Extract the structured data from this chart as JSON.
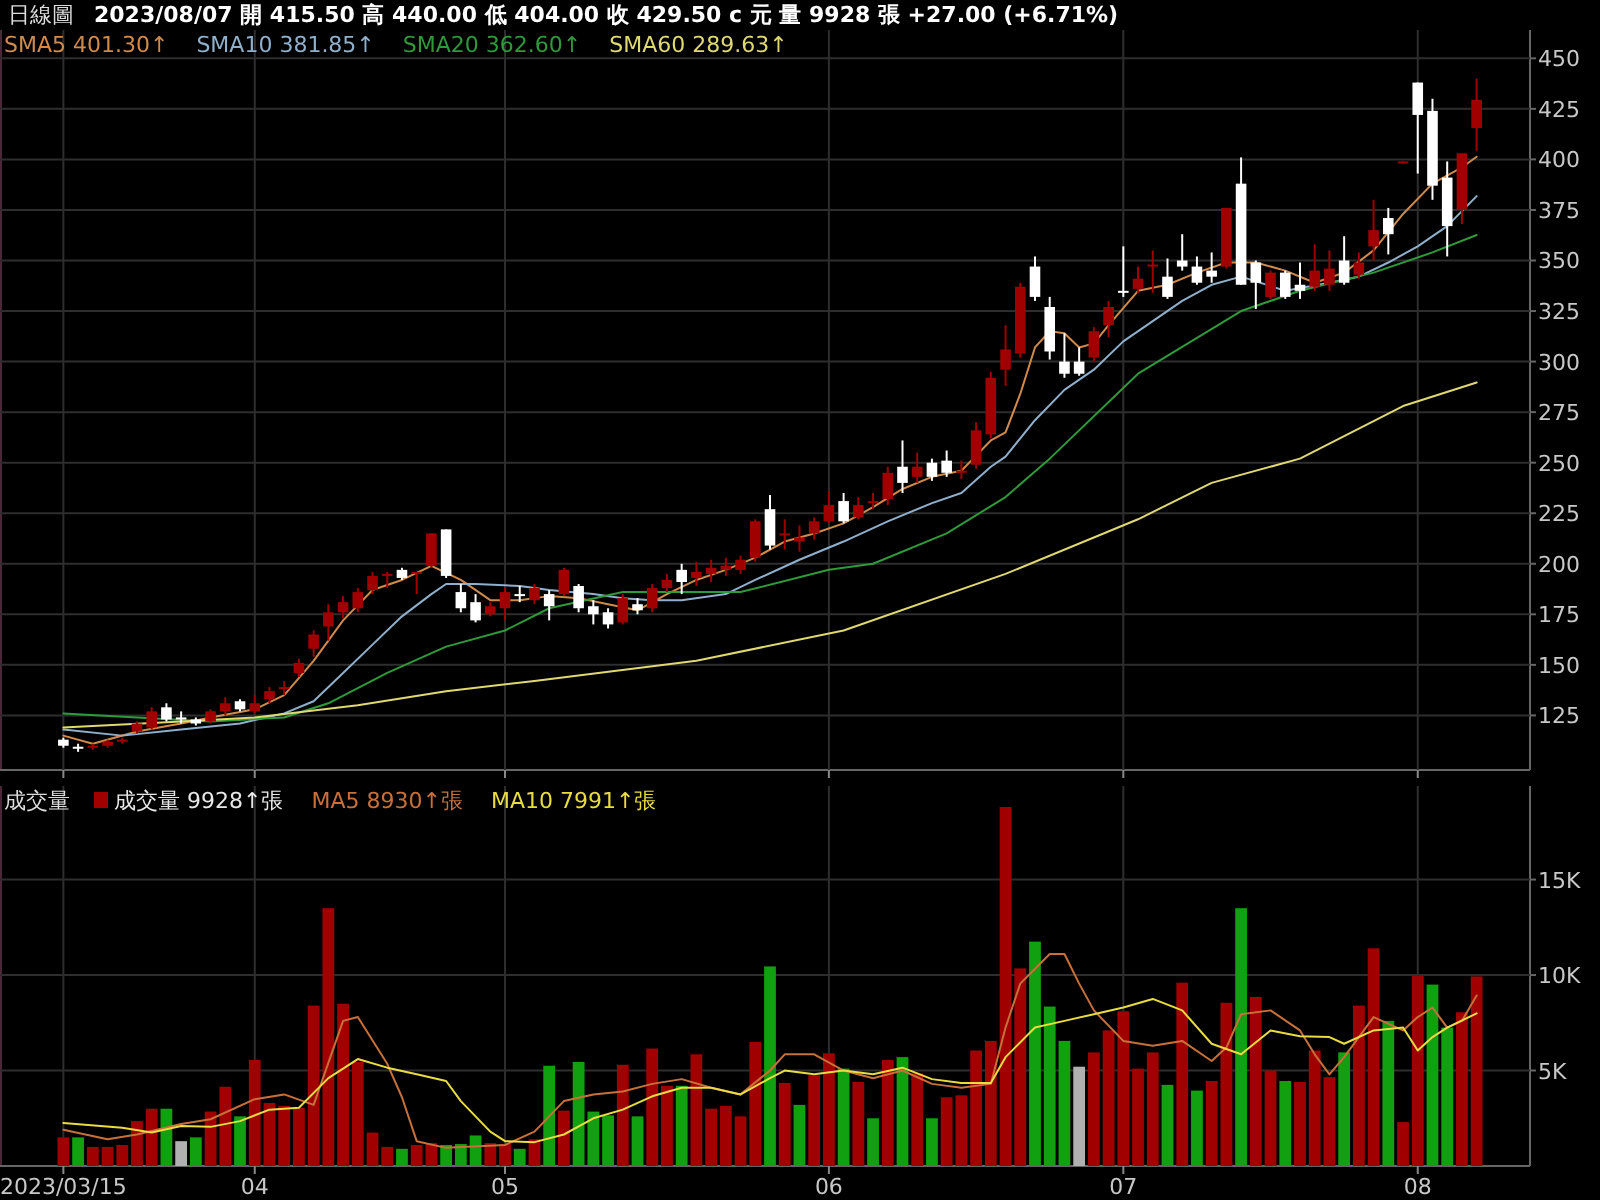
{
  "chart_data": [
    {
      "type": "candlestick",
      "title": "日線圖",
      "subtitle": "2023/08/07 開 415.50 高 440.00 低 404.00 收 429.50 c 元 量 9928 張 +27.00 (+6.71%)",
      "categories": [
        "2023/03/15",
        null,
        null,
        null,
        null,
        null,
        null,
        null,
        null,
        null,
        null,
        null,
        null,
        "04",
        null,
        null,
        null,
        null,
        null,
        null,
        null,
        null,
        null,
        null,
        null,
        null,
        null,
        null,
        null,
        null,
        "05",
        null,
        null,
        null,
        null,
        null,
        null,
        null,
        null,
        null,
        null,
        null,
        null,
        null,
        null,
        null,
        null,
        null,
        null,
        null,
        null,
        null,
        "06",
        null,
        null,
        null,
        null,
        null,
        null,
        null,
        null,
        null,
        null,
        null,
        null,
        null,
        null,
        null,
        null,
        null,
        null,
        null,
        "07",
        null,
        null,
        null,
        null,
        null,
        null,
        null,
        null,
        null,
        null,
        null,
        null,
        null,
        null,
        null,
        null,
        null,
        null,
        null,
        "08",
        null,
        null,
        null,
        null
      ],
      "ohlc": [
        [
          113,
          114,
          109,
          110
        ],
        [
          109.5,
          111,
          107,
          109
        ],
        [
          109,
          111,
          108,
          110
        ],
        [
          110,
          113,
          109,
          112
        ],
        [
          112,
          114,
          111,
          113
        ],
        [
          117,
          122,
          116,
          121
        ],
        [
          119,
          129,
          118,
          127
        ],
        [
          129,
          131,
          122,
          123
        ],
        [
          124,
          127,
          121,
          123
        ],
        [
          123,
          124,
          120,
          121
        ],
        [
          122,
          128,
          121,
          127
        ],
        [
          127,
          134,
          125,
          131
        ],
        [
          132,
          133,
          127,
          128
        ],
        [
          127,
          135,
          126,
          131
        ],
        [
          133,
          139,
          131,
          137
        ],
        [
          138,
          142,
          135,
          139
        ],
        [
          146,
          153,
          144,
          151
        ],
        [
          158,
          167,
          154,
          165
        ],
        [
          169,
          180,
          162,
          176
        ],
        [
          176,
          184,
          173,
          181
        ],
        [
          178,
          188,
          176,
          186
        ],
        [
          187,
          196,
          185,
          194
        ],
        [
          194,
          196,
          188,
          195
        ],
        [
          197,
          198,
          192,
          193
        ],
        [
          195,
          196,
          185,
          196
        ],
        [
          199,
          215,
          198,
          215
        ],
        [
          217,
          217,
          193,
          194
        ],
        [
          186,
          190,
          176,
          178
        ],
        [
          181,
          185,
          171,
          172
        ],
        [
          175,
          181,
          174,
          179
        ],
        [
          178,
          188,
          172,
          186
        ],
        [
          185,
          189,
          181,
          184
        ],
        [
          182,
          190,
          180,
          188
        ],
        [
          185,
          187,
          172,
          179
        ],
        [
          185,
          198,
          184,
          197
        ],
        [
          189,
          190,
          176,
          178
        ],
        [
          179,
          182,
          170,
          175
        ],
        [
          176,
          178,
          168,
          170
        ],
        [
          171,
          185,
          170,
          183
        ],
        [
          180,
          183,
          175,
          177
        ],
        [
          178,
          190,
          176,
          188
        ],
        [
          188,
          195,
          186,
          192
        ],
        [
          197,
          200,
          185,
          191
        ],
        [
          193,
          201,
          189,
          196
        ],
        [
          195,
          202,
          191,
          198
        ],
        [
          197,
          203,
          194,
          199
        ],
        [
          197,
          204,
          195,
          202
        ],
        [
          203,
          222,
          201,
          221
        ],
        [
          227,
          234,
          207,
          209
        ],
        [
          214,
          222,
          207,
          215
        ],
        [
          211,
          219,
          206,
          213
        ],
        [
          215,
          223,
          212,
          221
        ],
        [
          221,
          236,
          220,
          229
        ],
        [
          231,
          235,
          220,
          221
        ],
        [
          223,
          233,
          222,
          229
        ],
        [
          230,
          235,
          227,
          231
        ],
        [
          232,
          248,
          229,
          245
        ],
        [
          248,
          261,
          235,
          240
        ],
        [
          243,
          255,
          240,
          248
        ],
        [
          250,
          252,
          241,
          243
        ],
        [
          251,
          256,
          243,
          245
        ],
        [
          245,
          251,
          242,
          246
        ],
        [
          249,
          270,
          247,
          266
        ],
        [
          264,
          295,
          262,
          292
        ],
        [
          296,
          318,
          288,
          306
        ],
        [
          304,
          339,
          302,
          337
        ],
        [
          347,
          352,
          330,
          332
        ],
        [
          327,
          332,
          301,
          305
        ],
        [
          300,
          314,
          292,
          294
        ],
        [
          300,
          307,
          293,
          294
        ],
        [
          302,
          317,
          300,
          315
        ],
        [
          318,
          330,
          312,
          327
        ],
        [
          335,
          357,
          332,
          334
        ],
        [
          336,
          347,
          334,
          341
        ],
        [
          347,
          355,
          334,
          348
        ],
        [
          342,
          351,
          331,
          332
        ],
        [
          350,
          363,
          345,
          347
        ],
        [
          347,
          352,
          338,
          339
        ],
        [
          345,
          354,
          339,
          342
        ],
        [
          347,
          376,
          346,
          376
        ],
        [
          388,
          401,
          338,
          338
        ],
        [
          349,
          350,
          326,
          339
        ],
        [
          332,
          345,
          331,
          344
        ],
        [
          344,
          345,
          331,
          332
        ],
        [
          338,
          349,
          331,
          335
        ],
        [
          337,
          358,
          335,
          345
        ],
        [
          338,
          355,
          335,
          346
        ],
        [
          350,
          362,
          338,
          339
        ],
        [
          343,
          354,
          341,
          349
        ],
        [
          357,
          380,
          350,
          365
        ],
        [
          371,
          376,
          353,
          363
        ],
        [
          398,
          399,
          398,
          399
        ],
        [
          438,
          438,
          393,
          422
        ],
        [
          424,
          430,
          380,
          387
        ],
        [
          391,
          399,
          352,
          367
        ],
        [
          375,
          403,
          368,
          403
        ],
        [
          415.5,
          440,
          404,
          429.5
        ]
      ],
      "colors": [
        "#ffffff",
        "#ffffff",
        "#a00000",
        "#a00000",
        "#a00000",
        "#a00000",
        "#a00000",
        "#ffffff",
        "#ffffff",
        "#ffffff",
        "#a00000",
        "#a00000",
        "#ffffff",
        "#a00000",
        "#a00000",
        "#a00000",
        "#a00000",
        "#a00000",
        "#a00000",
        "#a00000",
        "#a00000",
        "#a00000",
        "#a00000",
        "#ffffff",
        "#a00000",
        "#a00000",
        "#ffffff",
        "#ffffff",
        "#ffffff",
        "#a00000",
        "#a00000",
        "#ffffff",
        "#a00000",
        "#ffffff",
        "#a00000",
        "#ffffff",
        "#ffffff",
        "#ffffff",
        "#a00000",
        "#ffffff",
        "#a00000",
        "#a00000",
        "#ffffff",
        "#a00000",
        "#a00000",
        "#a00000",
        "#a00000",
        "#a00000",
        "#ffffff",
        "#a00000",
        "#a00000",
        "#a00000",
        "#a00000",
        "#ffffff",
        "#a00000",
        "#a00000",
        "#a00000",
        "#ffffff",
        "#a00000",
        "#ffffff",
        "#ffffff",
        "#a00000",
        "#a00000",
        "#a00000",
        "#a00000",
        "#a00000",
        "#ffffff",
        "#ffffff",
        "#ffffff",
        "#ffffff",
        "#a00000",
        "#a00000",
        "#ffffff",
        "#a00000",
        "#a00000",
        "#ffffff",
        "#ffffff",
        "#ffffff",
        "#ffffff",
        "#a00000",
        "#ffffff",
        "#ffffff",
        "#a00000",
        "#ffffff",
        "#ffffff",
        "#a00000",
        "#a00000",
        "#ffffff",
        "#a00000",
        "#a00000",
        "#ffffff",
        "#a00000",
        "#ffffff",
        "#ffffff",
        "#ffffff",
        "#a00000",
        "#a00000"
      ],
      "series": [
        {
          "name": "SMA5 401.30↑",
          "type": "line",
          "color": "#d08a4a",
          "values": [
            115,
            null,
            111,
            null,
            null,
            117,
            null,
            null,
            121,
            null,
            124,
            null,
            null,
            128,
            null,
            135,
            null,
            152,
            null,
            172,
            null,
            187,
            null,
            192,
            null,
            199,
            null,
            192,
            null,
            182,
            null,
            182,
            null,
            184,
            null,
            183,
            null,
            180,
            null,
            177,
            null,
            185,
            null,
            192,
            null,
            197,
            null,
            203,
            null,
            211,
            null,
            215,
            null,
            220,
            null,
            228,
            null,
            237,
            null,
            243,
            null,
            246,
            null,
            261,
            265,
            284,
            307,
            315,
            314,
            307,
            309,
            318,
            null,
            335,
            null,
            338,
            null,
            344,
            null,
            349,
            null,
            349,
            null,
            345,
            null,
            339,
            null,
            344,
            null,
            355,
            null,
            373,
            null,
            388,
            null,
            396,
            401.3
          ]
        },
        {
          "name": "SMA10 381.85↑",
          "type": "line",
          "color": "#8fb0cc",
          "values": [
            118,
            null,
            null,
            null,
            115,
            null,
            null,
            null,
            118,
            null,
            null,
            null,
            121,
            null,
            null,
            126,
            null,
            132,
            null,
            146,
            null,
            160,
            null,
            174,
            null,
            185,
            190,
            null,
            190,
            null,
            null,
            189,
            null,
            187,
            null,
            null,
            185,
            null,
            183,
            null,
            182,
            null,
            182,
            null,
            null,
            185,
            null,
            192,
            null,
            null,
            202,
            null,
            null,
            211,
            null,
            null,
            221,
            null,
            null,
            230,
            null,
            235,
            null,
            248,
            253,
            null,
            271,
            null,
            286,
            null,
            296,
            null,
            310,
            null,
            320,
            null,
            330,
            null,
            338,
            null,
            342,
            null,
            null,
            335,
            null,
            null,
            339,
            null,
            342,
            null,
            349,
            null,
            357,
            null,
            367,
            null,
            381.85
          ]
        },
        {
          "name": "SMA20 362.60↑",
          "type": "line",
          "color": "#2e9a3a",
          "values": [
            126,
            null,
            null,
            null,
            null,
            124,
            null,
            null,
            null,
            null,
            122,
            null,
            null,
            null,
            null,
            124,
            null,
            null,
            131,
            null,
            null,
            null,
            146,
            null,
            null,
            null,
            159,
            null,
            null,
            null,
            167,
            null,
            null,
            178,
            null,
            null,
            null,
            null,
            186,
            null,
            null,
            null,
            null,
            null,
            null,
            null,
            186,
            null,
            null,
            null,
            null,
            null,
            197,
            null,
            null,
            200,
            null,
            null,
            null,
            null,
            215,
            null,
            null,
            null,
            233,
            null,
            null,
            252,
            null,
            null,
            null,
            null,
            null,
            294,
            null,
            null,
            null,
            null,
            null,
            null,
            325,
            null,
            null,
            null,
            335,
            null,
            null,
            null,
            null,
            344,
            null,
            null,
            null,
            354,
            null,
            null,
            362.6
          ]
        },
        {
          "name": "SMA60 289.63↑",
          "type": "line",
          "color": "#e0d870",
          "values": [
            119,
            null,
            null,
            null,
            null,
            null,
            null,
            null,
            122,
            null,
            null,
            null,
            null,
            124,
            null,
            null,
            null,
            null,
            null,
            null,
            130,
            null,
            null,
            null,
            null,
            null,
            137,
            null,
            null,
            null,
            null,
            null,
            142,
            null,
            null,
            null,
            null,
            null,
            null,
            null,
            null,
            null,
            null,
            152,
            null,
            null,
            null,
            null,
            null,
            null,
            null,
            null,
            null,
            167,
            null,
            null,
            null,
            null,
            null,
            null,
            null,
            null,
            null,
            null,
            195,
            null,
            null,
            null,
            null,
            null,
            null,
            null,
            null,
            222,
            null,
            null,
            null,
            null,
            240,
            null,
            null,
            null,
            null,
            null,
            252,
            null,
            null,
            null,
            null,
            null,
            null,
            278,
            null,
            null,
            null,
            null,
            289.63
          ]
        }
      ],
      "ylim": [
        98,
        464
      ],
      "yticks": [
        125,
        150,
        175,
        200,
        225,
        250,
        275,
        300,
        325,
        350,
        375,
        400,
        425,
        450
      ],
      "grid": true,
      "legend": "top left",
      "tick_labels": "y"
    },
    {
      "type": "bar",
      "title": "成交量",
      "categories": [
        "2023/03/15",
        null,
        null,
        null,
        null,
        null,
        null,
        null,
        null,
        null,
        null,
        null,
        null,
        "04",
        null,
        null,
        null,
        null,
        null,
        null,
        null,
        null,
        null,
        null,
        null,
        null,
        null,
        null,
        null,
        null,
        "05",
        null,
        null,
        null,
        null,
        null,
        null,
        null,
        null,
        null,
        null,
        null,
        null,
        null,
        null,
        null,
        null,
        null,
        null,
        null,
        null,
        null,
        "06",
        null,
        null,
        null,
        null,
        null,
        null,
        null,
        null,
        null,
        null,
        null,
        null,
        null,
        null,
        null,
        null,
        null,
        null,
        null,
        "07",
        null,
        null,
        null,
        null,
        null,
        null,
        null,
        null,
        null,
        null,
        null,
        null,
        null,
        null,
        null,
        null,
        null,
        null,
        null,
        "08",
        null,
        null,
        null,
        null
      ],
      "series": [
        {
          "name": "成交量 9928↑張",
          "values": [
            1500,
            1500,
            1000,
            1000,
            1100,
            2350,
            3000,
            3000,
            1300,
            1500,
            2850,
            4150,
            2600,
            5550,
            3300,
            3150,
            3050,
            8400,
            13500,
            8500,
            5450,
            1750,
            1000,
            900,
            1100,
            1200,
            1100,
            1150,
            1600,
            1200,
            1150,
            900,
            1400,
            5250,
            2900,
            5450,
            2850,
            2650,
            5300,
            2600,
            6150,
            4200,
            4200,
            5850,
            3000,
            3150,
            2600,
            6500,
            10450,
            4350,
            3200,
            4750,
            5900,
            5100,
            4400,
            2500,
            5550,
            5700,
            4850,
            2500,
            3600,
            3700,
            6050,
            6550,
            18800,
            10350,
            11750,
            8350,
            6550,
            5200,
            5950,
            7100,
            8100,
            5100,
            5950,
            4250,
            9600,
            3950,
            4450,
            8550,
            13500,
            8850,
            5000,
            4450,
            4400,
            6050,
            4650,
            5950,
            8400,
            11400,
            7600,
            2300,
            9950,
            9500,
            7250,
            8050,
            9928
          ],
          "colors": [
            "#a00000",
            "#10a010",
            "#a00000",
            "#a00000",
            "#a00000",
            "#a00000",
            "#a00000",
            "#10a010",
            "#b0b0b0",
            "#10a010",
            "#a00000",
            "#a00000",
            "#10a010",
            "#a00000",
            "#a00000",
            "#a00000",
            "#a00000",
            "#a00000",
            "#a00000",
            "#a00000",
            "#a00000",
            "#a00000",
            "#a00000",
            "#10a010",
            "#a00000",
            "#a00000",
            "#10a010",
            "#10a010",
            "#10a010",
            "#a00000",
            "#a00000",
            "#10a010",
            "#a00000",
            "#10a010",
            "#a00000",
            "#10a010",
            "#10a010",
            "#10a010",
            "#a00000",
            "#10a010",
            "#a00000",
            "#a00000",
            "#10a010",
            "#a00000",
            "#a00000",
            "#a00000",
            "#a00000",
            "#a00000",
            "#10a010",
            "#a00000",
            "#10a010",
            "#a00000",
            "#a00000",
            "#10a010",
            "#a00000",
            "#10a010",
            "#a00000",
            "#10a010",
            "#a00000",
            "#10a010",
            "#a00000",
            "#a00000",
            "#a00000",
            "#a00000",
            "#a00000",
            "#a00000",
            "#10a010",
            "#10a010",
            "#10a010",
            "#b0b0b0",
            "#a00000",
            "#a00000",
            "#a00000",
            "#a00000",
            "#a00000",
            "#10a010",
            "#a00000",
            "#10a010",
            "#a00000",
            "#a00000",
            "#10a010",
            "#a00000",
            "#a00000",
            "#10a010",
            "#a00000",
            "#a00000",
            "#a00000",
            "#10a010",
            "#a00000",
            "#a00000",
            "#10a010",
            "#a00000",
            "#a00000",
            "#10a010",
            "#10a010",
            "#a00000",
            "#a00000"
          ]
        },
        {
          "name": "MA5 8930↑張",
          "type": "line",
          "color": "#c8703a",
          "values": [
            1900,
            null,
            null,
            1400,
            null,
            1650,
            null,
            null,
            2200,
            null,
            2450,
            null,
            null,
            3500,
            null,
            3750,
            null,
            3200,
            null,
            7600,
            7800,
            null,
            5350,
            3600,
            1300,
            null,
            950,
            null,
            null,
            null,
            1100,
            null,
            1800,
            null,
            3400,
            null,
            3750,
            null,
            3900,
            null,
            4300,
            null,
            4550,
            null,
            4100,
            null,
            3750,
            null,
            5000,
            5850,
            null,
            5850,
            null,
            5000,
            null,
            4600,
            null,
            5000,
            null,
            4300,
            null,
            4100,
            null,
            4300,
            7250,
            9550,
            null,
            11100,
            11100,
            9550,
            8150,
            null,
            6550,
            null,
            6300,
            null,
            6550,
            null,
            5500,
            6200,
            7950,
            null,
            8150,
            null,
            7100,
            5850,
            4800,
            5700,
            null,
            7800,
            null,
            7100,
            7800,
            8300,
            7250,
            7600,
            8930
          ]
        },
        {
          "name": "MA10 7991↑張",
          "type": "line",
          "color": "#e8dc40",
          "values": [
            2250,
            null,
            null,
            null,
            2000,
            null,
            1750,
            null,
            2100,
            null,
            2050,
            null,
            2350,
            null,
            2950,
            null,
            3050,
            null,
            4600,
            null,
            5600,
            null,
            5150,
            null,
            4800,
            null,
            4450,
            3400,
            null,
            1800,
            1300,
            null,
            1250,
            null,
            1650,
            null,
            2500,
            null,
            2950,
            null,
            3650,
            null,
            4100,
            null,
            4100,
            null,
            3750,
            null,
            4600,
            5000,
            null,
            4800,
            null,
            5000,
            null,
            4800,
            null,
            5150,
            null,
            4550,
            null,
            4350,
            null,
            4350,
            5700,
            null,
            7250,
            null,
            7600,
            null,
            7950,
            null,
            8300,
            null,
            8750,
            null,
            8150,
            null,
            6400,
            null,
            5850,
            null,
            7100,
            null,
            6800,
            null,
            6750,
            6400,
            null,
            7100,
            null,
            7250,
            6050,
            6750,
            7250,
            null,
            7991
          ]
        }
      ],
      "ylim": [
        0,
        19900
      ],
      "yticks": [
        {
          "value": 5000,
          "label": "5K"
        },
        {
          "value": 10000,
          "label": "10K"
        },
        {
          "value": 15000,
          "label": "15K"
        }
      ],
      "grid": true,
      "legend": "top left"
    }
  ]
}
